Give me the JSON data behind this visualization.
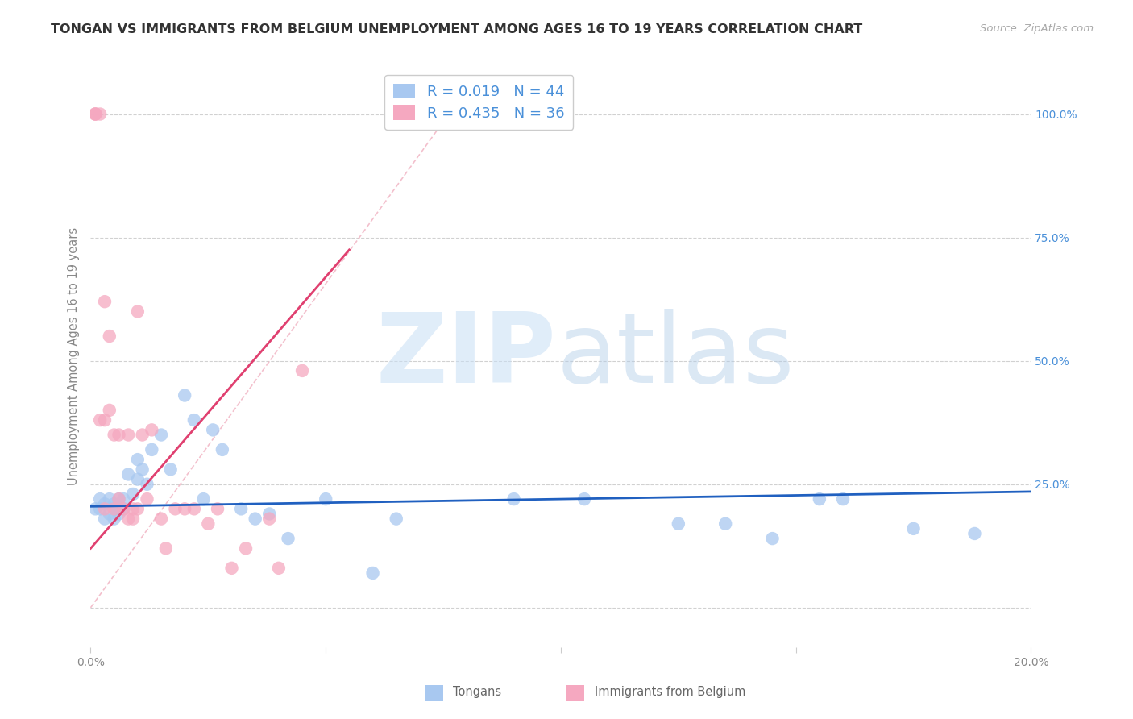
{
  "title": "TONGAN VS IMMIGRANTS FROM BELGIUM UNEMPLOYMENT AMONG AGES 16 TO 19 YEARS CORRELATION CHART",
  "source": "Source: ZipAtlas.com",
  "ylabel": "Unemployment Among Ages 16 to 19 years",
  "xlim": [
    0.0,
    0.2
  ],
  "ylim_low": -0.08,
  "ylim_high": 1.1,
  "legend_blue_r": "R = 0.019",
  "legend_blue_n": "N = 44",
  "legend_pink_r": "R = 0.435",
  "legend_pink_n": "N = 36",
  "legend_label1": "Tongans",
  "legend_label2": "Immigrants from Belgium",
  "blue_color": "#a8c8f0",
  "pink_color": "#f5a8c0",
  "blue_line_color": "#2060c0",
  "pink_line_color": "#e04070",
  "ref_line_color": "#f0a0b8",
  "right_tick_color": "#4a90d9",
  "legend_text_color": "#4a90d9",
  "blue_x": [
    0.001,
    0.002,
    0.002,
    0.003,
    0.003,
    0.004,
    0.004,
    0.005,
    0.005,
    0.005,
    0.006,
    0.006,
    0.007,
    0.007,
    0.008,
    0.009,
    0.01,
    0.01,
    0.011,
    0.012,
    0.013,
    0.015,
    0.017,
    0.02,
    0.022,
    0.024,
    0.026,
    0.028,
    0.032,
    0.035,
    0.038,
    0.042,
    0.05,
    0.06,
    0.065,
    0.09,
    0.105,
    0.125,
    0.135,
    0.145,
    0.155,
    0.16,
    0.175,
    0.188
  ],
  "blue_y": [
    0.2,
    0.2,
    0.22,
    0.18,
    0.21,
    0.19,
    0.22,
    0.2,
    0.18,
    0.21,
    0.19,
    0.22,
    0.22,
    0.2,
    0.27,
    0.23,
    0.3,
    0.26,
    0.28,
    0.25,
    0.32,
    0.35,
    0.28,
    0.43,
    0.38,
    0.22,
    0.36,
    0.32,
    0.2,
    0.18,
    0.19,
    0.14,
    0.22,
    0.07,
    0.18,
    0.22,
    0.22,
    0.17,
    0.17,
    0.14,
    0.22,
    0.22,
    0.16,
    0.15
  ],
  "pink_x": [
    0.001,
    0.001,
    0.001,
    0.002,
    0.002,
    0.003,
    0.003,
    0.003,
    0.004,
    0.004,
    0.005,
    0.005,
    0.006,
    0.006,
    0.007,
    0.008,
    0.008,
    0.009,
    0.009,
    0.01,
    0.01,
    0.011,
    0.012,
    0.013,
    0.015,
    0.016,
    0.018,
    0.02,
    0.022,
    0.025,
    0.027,
    0.03,
    0.033,
    0.038,
    0.04,
    0.045
  ],
  "pink_y": [
    1.0,
    1.0,
    1.0,
    1.0,
    0.38,
    0.62,
    0.38,
    0.2,
    0.55,
    0.4,
    0.35,
    0.2,
    0.35,
    0.22,
    0.2,
    0.18,
    0.35,
    0.18,
    0.2,
    0.6,
    0.2,
    0.35,
    0.22,
    0.36,
    0.18,
    0.12,
    0.2,
    0.2,
    0.2,
    0.17,
    0.2,
    0.08,
    0.12,
    0.18,
    0.08,
    0.48
  ],
  "title_fontsize": 11.5,
  "axis_tick_fontsize": 10,
  "ylabel_fontsize": 10.5,
  "legend_fontsize": 13,
  "source_fontsize": 9.5
}
